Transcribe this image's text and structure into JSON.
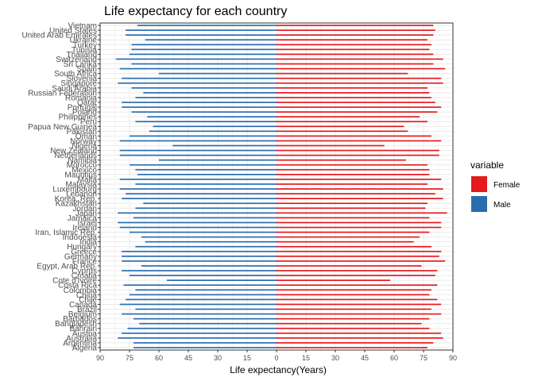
{
  "chart_data": {
    "type": "bar",
    "orientation": "horizontal-diverging",
    "title": "Life expectancy for each country",
    "xlabel": "Life expectancy(Years)",
    "ylabel": "",
    "xlim": [
      -90,
      90
    ],
    "x_ticks": [
      -90,
      -75,
      -60,
      -45,
      -30,
      -15,
      0,
      15,
      30,
      45,
      60,
      75,
      90
    ],
    "x_tick_labels": [
      "90",
      "75",
      "60",
      "45",
      "30",
      "15",
      "0",
      "15",
      "30",
      "45",
      "60",
      "75",
      "90"
    ],
    "grid": true,
    "legend": {
      "title": "variable",
      "position": "right"
    },
    "colors": {
      "Female": "#e41a1c",
      "Male": "#2b6cb0",
      "panel_border": "#333333",
      "grid": "#ebebeb"
    },
    "categories": [
      "Algeria",
      "Argentina",
      "Australia",
      "Austria",
      "Bahrain",
      "Bangladesh",
      "Barbados",
      "Belgium",
      "Brazil",
      "Canada",
      "Chile",
      "China",
      "Colombia",
      "Costa Rica",
      "Cote d'Ivoire",
      "Croatia",
      "Cyprus",
      "Egypt, Arab Rep.",
      "France",
      "Germany",
      "Greece",
      "Hungary",
      "India",
      "Indonesia",
      "Iran, Islamic Rep.",
      "Ireland",
      "Israel",
      "Jamaica",
      "Japan",
      "Jordan",
      "Kazakhstan",
      "Korea, Rep.",
      "Lebanon",
      "Luxembourg",
      "Malaysia",
      "Malta",
      "Mauritius",
      "Mexico",
      "Morocco",
      "Namibia",
      "Netherlands",
      "New Zealand",
      "Nigeria",
      "Norway",
      "Oman",
      "Pakistan",
      "Papua New Guinea",
      "Peru",
      "Philippines",
      "Poland",
      "Portugal",
      "Qatar",
      "Romania",
      "Russian Federation",
      "Saudi Arabia",
      "Singapore",
      "Slovenia",
      "South Africa",
      "Spain",
      "Sri Lanka",
      "Switzerland",
      "Thailand",
      "Tunisia",
      "Turkey",
      "Ukraine",
      "United Arab Emirates",
      "United States",
      "Vietnam"
    ],
    "series": [
      {
        "name": "Female",
        "values": [
          77,
          80,
          85,
          84,
          78,
          74,
          78,
          84,
          79,
          84,
          82,
          78,
          79,
          82,
          58,
          81,
          82,
          74,
          86,
          83,
          84,
          79,
          70,
          73,
          78,
          84,
          84,
          78,
          87,
          76,
          77,
          85,
          81,
          85,
          77,
          84,
          78,
          78,
          77,
          66,
          83,
          83,
          55,
          84,
          79,
          67,
          65,
          77,
          73,
          82,
          84,
          81,
          79,
          78,
          77,
          85,
          84,
          67,
          86,
          80,
          85,
          80,
          78,
          79,
          77,
          80,
          81,
          80
        ]
      },
      {
        "name": "Male",
        "values": [
          -73,
          -73,
          -81,
          -79,
          -76,
          -70,
          -73,
          -79,
          -72,
          -80,
          -77,
          -75,
          -72,
          -78,
          -56,
          -75,
          -79,
          -69,
          -79,
          -79,
          -79,
          -72,
          -67,
          -69,
          -75,
          -80,
          -81,
          -73,
          -81,
          -72,
          -68,
          -79,
          -77,
          -80,
          -72,
          -80,
          -71,
          -72,
          -75,
          -60,
          -80,
          -80,
          -53,
          -80,
          -75,
          -65,
          -63,
          -72,
          -66,
          -74,
          -79,
          -79,
          -72,
          -68,
          -74,
          -81,
          -79,
          -60,
          -80,
          -74,
          -82,
          -75,
          -74,
          -74,
          -67,
          -77,
          -77,
          -71
        ]
      }
    ]
  }
}
